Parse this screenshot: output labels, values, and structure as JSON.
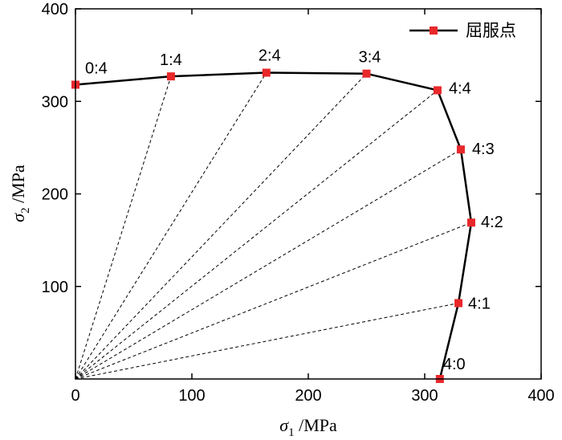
{
  "chart_data": {
    "type": "scatter",
    "xlabel": {
      "symbol": "σ",
      "sub": "1",
      "unit": " /MPa"
    },
    "ylabel": {
      "symbol": "σ",
      "sub": "2",
      "unit": " /MPa"
    },
    "xlim": [
      0,
      400
    ],
    "ylim": [
      0,
      400
    ],
    "xticks": [
      0,
      100,
      200,
      300,
      400
    ],
    "yticks": [
      100,
      200,
      300,
      400
    ],
    "legend": {
      "label": "屈服点",
      "position": "top-right"
    },
    "colors": {
      "curve": "#000000",
      "marker": "#e8282b",
      "ray": "#000000"
    },
    "series": [
      {
        "name": "屈服点",
        "points": [
          {
            "label": "0:4",
            "x": 0,
            "y": 318
          },
          {
            "label": "1:4",
            "x": 82,
            "y": 327
          },
          {
            "label": "2:4",
            "x": 164,
            "y": 331
          },
          {
            "label": "3:4",
            "x": 250,
            "y": 330
          },
          {
            "label": "4:4",
            "x": 311,
            "y": 312
          },
          {
            "label": "4:3",
            "x": 331,
            "y": 248
          },
          {
            "label": "4:2",
            "x": 340,
            "y": 169
          },
          {
            "label": "4:1",
            "x": 329,
            "y": 82
          },
          {
            "label": "4:0",
            "x": 313,
            "y": 0
          }
        ]
      }
    ]
  }
}
